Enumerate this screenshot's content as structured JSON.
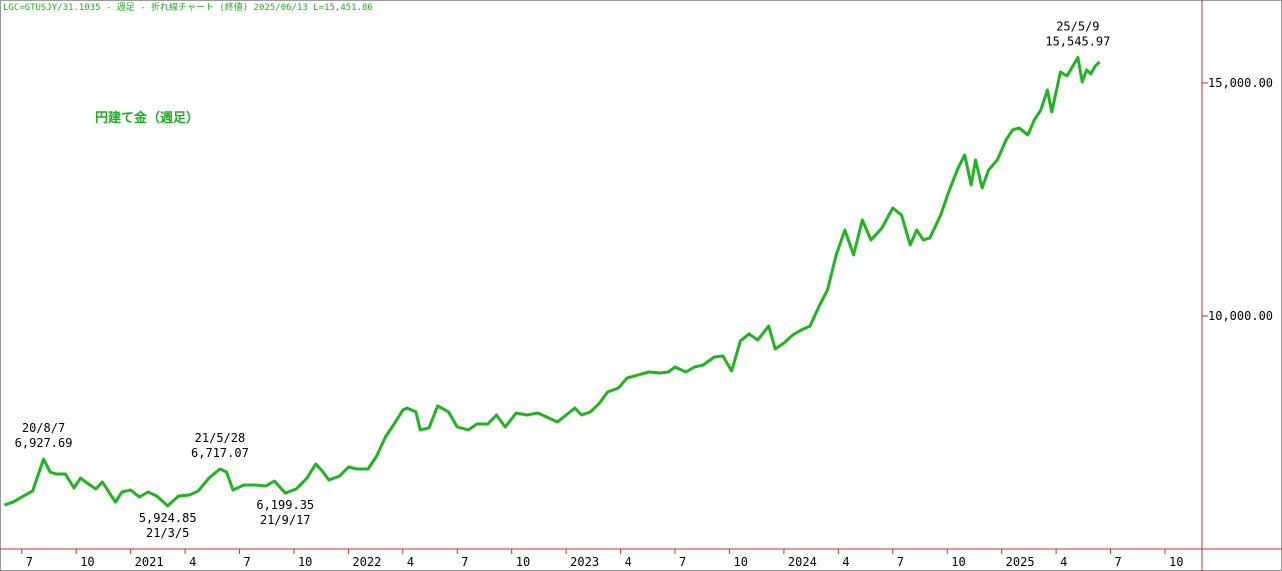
{
  "header": "LGC=GTUSJY/31.1035 - 週足 - 折れ線チャート (終値)  2025/06/13 L=15,451.86",
  "chart_data": {
    "type": "line",
    "xlim": [
      2020.4,
      2025.92
    ],
    "xticks": [
      {
        "value": 2020.5,
        "label": "7"
      },
      {
        "value": 2020.75,
        "label": "10"
      },
      {
        "value": 2021,
        "label": "2021"
      },
      {
        "value": 2021.25,
        "label": "4"
      },
      {
        "value": 2021.5,
        "label": "7"
      },
      {
        "value": 2021.75,
        "label": "10"
      },
      {
        "value": 2022,
        "label": "2022"
      },
      {
        "value": 2022.25,
        "label": "4"
      },
      {
        "value": 2022.5,
        "label": "7"
      },
      {
        "value": 2022.75,
        "label": "10"
      },
      {
        "value": 2023,
        "label": "2023"
      },
      {
        "value": 2023.25,
        "label": "4"
      },
      {
        "value": 2023.5,
        "label": "7"
      },
      {
        "value": 2023.75,
        "label": "10"
      },
      {
        "value": 2024,
        "label": "2024"
      },
      {
        "value": 2024.25,
        "label": "4"
      },
      {
        "value": 2024.5,
        "label": "7"
      },
      {
        "value": 2024.75,
        "label": "10"
      },
      {
        "value": 2025,
        "label": "2025"
      },
      {
        "value": 2025.25,
        "label": "4"
      },
      {
        "value": 2025.5,
        "label": "7"
      },
      {
        "value": 2025.75,
        "label": "10"
      }
    ],
    "ylim": [
      5000,
      16780
    ],
    "yticks": [
      {
        "value": 10000,
        "label": "10,000.00"
      },
      {
        "value": 15000,
        "label": "15,000.00"
      }
    ],
    "x": [
      2020.42,
      2020.46,
      2020.5,
      2020.55,
      2020.6,
      2020.63,
      2020.66,
      2020.7,
      2020.74,
      2020.77,
      2020.8,
      2020.84,
      2020.87,
      2020.93,
      2020.96,
      2021.0,
      2021.04,
      2021.08,
      2021.12,
      2021.17,
      2021.22,
      2021.27,
      2021.31,
      2021.36,
      2021.41,
      2021.44,
      2021.47,
      2021.52,
      2021.57,
      2021.62,
      2021.66,
      2021.71,
      2021.76,
      2021.81,
      2021.85,
      2021.88,
      2021.91,
      2021.96,
      2022.0,
      2022.04,
      2022.09,
      2022.13,
      2022.17,
      2022.21,
      2022.25,
      2022.27,
      2022.31,
      2022.33,
      2022.37,
      2022.41,
      2022.46,
      2022.5,
      2022.55,
      2022.59,
      2022.64,
      2022.68,
      2022.72,
      2022.77,
      2022.82,
      2022.87,
      2022.92,
      2022.96,
      2023.0,
      2023.04,
      2023.07,
      2023.11,
      2023.15,
      2023.19,
      2023.24,
      2023.28,
      2023.33,
      2023.38,
      2023.43,
      2023.47,
      2023.5,
      2023.55,
      2023.59,
      2023.63,
      2023.68,
      2023.72,
      2023.76,
      2023.8,
      2023.84,
      2023.88,
      2023.93,
      2023.96,
      2024.0,
      2024.04,
      2024.08,
      2024.12,
      2024.16,
      2024.2,
      2024.24,
      2024.28,
      2024.32,
      2024.36,
      2024.4,
      2024.45,
      2024.5,
      2024.54,
      2024.58,
      2024.61,
      2024.64,
      2024.67,
      2024.72,
      2024.76,
      2024.8,
      2024.83,
      2024.86,
      2024.88,
      2024.91,
      2024.94,
      2024.98,
      2025.02,
      2025.05,
      2025.08,
      2025.12,
      2025.15,
      2025.18,
      2025.21,
      2025.23,
      2025.27,
      2025.3,
      2025.35,
      2025.37,
      2025.39,
      2025.41,
      2025.43,
      2025.45
    ],
    "series": [
      {
        "name": "円建て金（週足）",
        "color": "#22b322",
        "values": [
          5944,
          6008,
          6116,
          6245,
          6927.69,
          6652,
          6609,
          6609,
          6309,
          6523,
          6416,
          6287,
          6438,
          6008,
          6223,
          6266,
          6116,
          6223,
          6137,
          5924.85,
          6137,
          6159,
          6245,
          6523,
          6717.07,
          6652,
          6266,
          6373,
          6373,
          6352,
          6459,
          6199.35,
          6287,
          6523,
          6824,
          6674,
          6481,
          6566,
          6760,
          6717,
          6717,
          6996,
          7403,
          7682,
          7983,
          8026,
          7940,
          7554,
          7597,
          8069,
          7940,
          7618,
          7554,
          7682,
          7682,
          7875,
          7618,
          7918,
          7875,
          7918,
          7811,
          7725,
          7875,
          8026,
          7875,
          7940,
          8112,
          8369,
          8455,
          8670,
          8734,
          8798,
          8777,
          8798,
          8906,
          8798,
          8906,
          8948,
          9120,
          9142,
          8820,
          9464,
          9614,
          9485,
          9785,
          9292,
          9421,
          9592,
          9700,
          9785,
          10193,
          10558,
          11309,
          11846,
          11309,
          12060,
          11631,
          11888,
          12318,
          12167,
          11524,
          11846,
          11631,
          11674,
          12167,
          12704,
          13176,
          13455,
          12811,
          13348,
          12747,
          13133,
          13348,
          13777,
          13992,
          14035,
          13884,
          14206,
          14421,
          14850,
          14378,
          15236,
          15150,
          15545.97,
          15022,
          15279,
          15193,
          15365,
          15451.86
        ],
        "value_labels": [
          null,
          null,
          null,
          null,
          "6,927.69",
          null,
          null,
          null,
          null,
          null,
          null,
          null,
          null,
          null,
          null,
          null,
          null,
          null,
          null,
          "5,924.85",
          null,
          null,
          null,
          null,
          "6,717.07",
          null,
          null,
          null,
          null,
          null,
          null,
          "6,199.35",
          null,
          null,
          null,
          null,
          null,
          null,
          null,
          null,
          null,
          null,
          null,
          null,
          null,
          null,
          null,
          null,
          null,
          null,
          null,
          null,
          null,
          null,
          null,
          null,
          null,
          null,
          null,
          null,
          null,
          null,
          null,
          null,
          null,
          null,
          null,
          null,
          null,
          null,
          null,
          null,
          null,
          null,
          null,
          null,
          null,
          null,
          null,
          null,
          null,
          null,
          null,
          null,
          null,
          null,
          null,
          null,
          null,
          null,
          null,
          null,
          null,
          null,
          null,
          null,
          null,
          null,
          null,
          null,
          null,
          null,
          null,
          null,
          null,
          null,
          null,
          null,
          null,
          null,
          null,
          null,
          null,
          null,
          null,
          null,
          null,
          null,
          null,
          null,
          null,
          null,
          null,
          "15,545.97",
          null,
          null,
          null,
          null,
          null
        ],
        "date_labels": [
          null,
          null,
          null,
          null,
          "20/8/7",
          null,
          null,
          null,
          null,
          null,
          null,
          null,
          null,
          null,
          null,
          null,
          null,
          null,
          null,
          "21/3/5",
          null,
          null,
          null,
          null,
          "21/5/28",
          null,
          null,
          null,
          null,
          null,
          null,
          "21/9/17",
          null,
          null,
          null,
          null,
          null,
          null,
          null,
          null,
          null,
          null,
          null,
          null,
          null,
          null,
          null,
          null,
          null,
          null,
          null,
          null,
          null,
          null,
          null,
          null,
          null,
          null,
          null,
          null,
          null,
          null,
          null,
          null,
          null,
          null,
          null,
          null,
          null,
          null,
          null,
          null,
          null,
          null,
          null,
          null,
          null,
          null,
          null,
          null,
          null,
          null,
          null,
          null,
          null,
          null,
          null,
          null,
          null,
          null,
          null,
          null,
          null,
          null,
          null,
          null,
          null,
          null,
          null,
          null,
          null,
          null,
          null,
          null,
          null,
          null,
          null,
          null,
          null,
          null,
          null,
          null,
          null,
          null,
          null,
          null,
          null,
          null,
          null,
          null,
          null,
          null,
          null,
          "25/5/9",
          null,
          null,
          null,
          null,
          null
        ]
      }
    ]
  }
}
